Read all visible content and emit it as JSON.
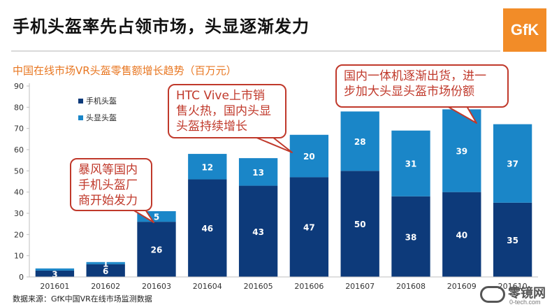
{
  "header": {
    "title": "手机头盔率先占领市场，头显逐渐发力",
    "logo_text": "GfK"
  },
  "source_note": "数据来源：GfK中国VR在线市场监测数据",
  "watermark": {
    "text": "零镜网",
    "sub": "0-tech.com"
  },
  "callouts": [
    {
      "text": "暴风等国内\n手机头盔厂\n商开始发力"
    },
    {
      "text": "HTC Vive上市销\n售火热，国内头显\n头盔持续增长"
    },
    {
      "text": "国内一体机逐渐出货，进一\n步加大头显头盔市场份额"
    }
  ],
  "colors": {
    "phone": "#0d3a7a",
    "display": "#1a86c8",
    "accent": "#e87722",
    "callout": "#c0392b"
  },
  "chart_data": {
    "type": "bar",
    "stacked": true,
    "title": "中国在线市场VR头盔零售额增长趋势（百万元）",
    "categories": [
      "201601",
      "201602",
      "201603",
      "201604",
      "201605",
      "201606",
      "201607",
      "201608",
      "201609",
      "201610"
    ],
    "series": [
      {
        "name": "手机头盔",
        "values": [
          3,
          6,
          26,
          46,
          43,
          47,
          50,
          38,
          40,
          35
        ],
        "labels": [
          "3",
          "6",
          "26",
          "46",
          "43",
          "47",
          "50",
          "38",
          "40",
          "35"
        ]
      },
      {
        "name": "头显头盔",
        "values": [
          1,
          1,
          5,
          12,
          13,
          20,
          28,
          31,
          39,
          37
        ],
        "labels": [
          "",
          "1",
          "5",
          "12",
          "13",
          "20",
          "28",
          "31",
          "39",
          "37"
        ]
      }
    ],
    "y_ticks": [
      "0",
      "10",
      "20",
      "30",
      "40",
      "50",
      "60",
      "70",
      "80",
      "90"
    ],
    "ylim": [
      0,
      90
    ],
    "legend_position": "top-left",
    "grid": false
  }
}
